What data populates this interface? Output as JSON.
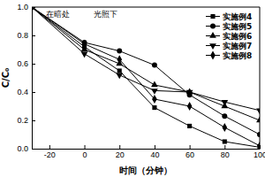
{
  "chart_data": {
    "type": "line",
    "x_label": "时间（分钟）",
    "y_label": "C/C₀",
    "x": [
      -30,
      0,
      20,
      40,
      60,
      80,
      100
    ],
    "series": [
      {
        "name": "实施例4",
        "color": "#000000",
        "marker": "square",
        "values": [
          1.0,
          0.72,
          0.55,
          0.29,
          0.16,
          0.05,
          0.01
        ]
      },
      {
        "name": "实施例5",
        "color": "#000000",
        "marker": "circle",
        "values": [
          1.0,
          0.75,
          0.69,
          0.59,
          0.38,
          0.23,
          0.1
        ]
      },
      {
        "name": "实施例6",
        "color": "#000000",
        "marker": "triangle-up",
        "values": [
          1.0,
          0.7,
          0.6,
          0.45,
          0.4,
          0.3,
          0.2
        ]
      },
      {
        "name": "实施例7",
        "color": "#000000",
        "marker": "triangle-down",
        "values": [
          1.0,
          0.67,
          0.52,
          0.41,
          0.4,
          0.33,
          0.27
        ]
      },
      {
        "name": "实施例8",
        "color": "#000000",
        "marker": "diamond",
        "values": [
          1.0,
          0.74,
          0.63,
          0.35,
          0.3,
          0.15,
          0.02
        ]
      }
    ],
    "annotations": [
      {
        "text": "在暗处",
        "x": -15,
        "y": 0.93
      },
      {
        "text": "光照下",
        "x": 12,
        "y": 0.93
      }
    ],
    "xlim": [
      -30,
      100
    ],
    "xticks": [
      -20,
      0,
      20,
      40,
      60,
      80,
      100
    ],
    "ylim": [
      0,
      1.0
    ],
    "yticks": [
      {
        "value": 0,
        "label": "0.0"
      },
      0.2,
      0.4,
      0.6,
      0.8,
      {
        "value": 1.0,
        "label": "1.0"
      }
    ],
    "legend": "upper right",
    "grid": false
  }
}
